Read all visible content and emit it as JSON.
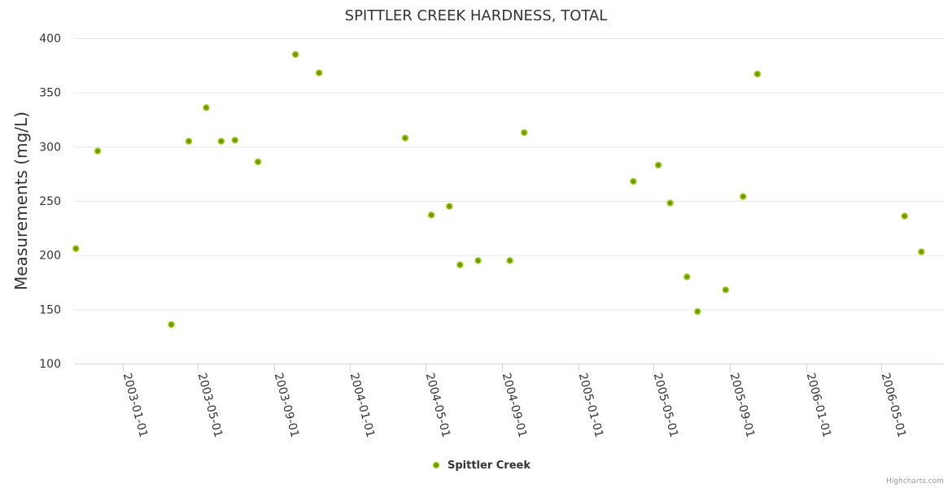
{
  "colors": {
    "point_fill": "#6b9c00",
    "point_stroke": "#aacc22",
    "grid": "#e6e6e6",
    "axis": "#ccd6eb"
  },
  "chart_data": {
    "type": "scatter",
    "title": "SPITTLER CREEK HARDNESS, TOTAL",
    "xlabel": "",
    "ylabel": "Measurements (mg/L)",
    "ylim": [
      100,
      400
    ],
    "yticks": [
      100,
      150,
      200,
      250,
      300,
      350,
      400
    ],
    "xlim": [
      "2002-10-15",
      "2006-08-10"
    ],
    "xticks": [
      "2003-01-01",
      "2003-05-01",
      "2003-09-01",
      "2004-01-01",
      "2004-05-01",
      "2004-09-01",
      "2005-01-01",
      "2005-05-01",
      "2005-09-01",
      "2006-01-01",
      "2006-05-01"
    ],
    "grid": true,
    "legend_position": "bottom-center",
    "series": [
      {
        "name": "Spittler Creek",
        "points": [
          {
            "x": "2002-10-18",
            "y": 206
          },
          {
            "x": "2002-11-22",
            "y": 296
          },
          {
            "x": "2003-03-20",
            "y": 136
          },
          {
            "x": "2003-04-17",
            "y": 305
          },
          {
            "x": "2003-05-15",
            "y": 336
          },
          {
            "x": "2003-06-08",
            "y": 305
          },
          {
            "x": "2003-06-30",
            "y": 306
          },
          {
            "x": "2003-08-06",
            "y": 286
          },
          {
            "x": "2003-10-05",
            "y": 385
          },
          {
            "x": "2003-11-12",
            "y": 368
          },
          {
            "x": "2004-03-29",
            "y": 308
          },
          {
            "x": "2004-05-10",
            "y": 237
          },
          {
            "x": "2004-06-08",
            "y": 245
          },
          {
            "x": "2004-06-25",
            "y": 191
          },
          {
            "x": "2004-07-24",
            "y": 195
          },
          {
            "x": "2004-09-13",
            "y": 195
          },
          {
            "x": "2004-10-06",
            "y": 313
          },
          {
            "x": "2005-03-30",
            "y": 268
          },
          {
            "x": "2005-05-09",
            "y": 283
          },
          {
            "x": "2005-05-28",
            "y": 248
          },
          {
            "x": "2005-06-24",
            "y": 180
          },
          {
            "x": "2005-07-11",
            "y": 148
          },
          {
            "x": "2005-08-25",
            "y": 168
          },
          {
            "x": "2005-09-22",
            "y": 254
          },
          {
            "x": "2005-10-15",
            "y": 367
          },
          {
            "x": "2006-06-08",
            "y": 236
          },
          {
            "x": "2006-07-05",
            "y": 203
          }
        ]
      }
    ],
    "credits": "Highcharts.com"
  }
}
